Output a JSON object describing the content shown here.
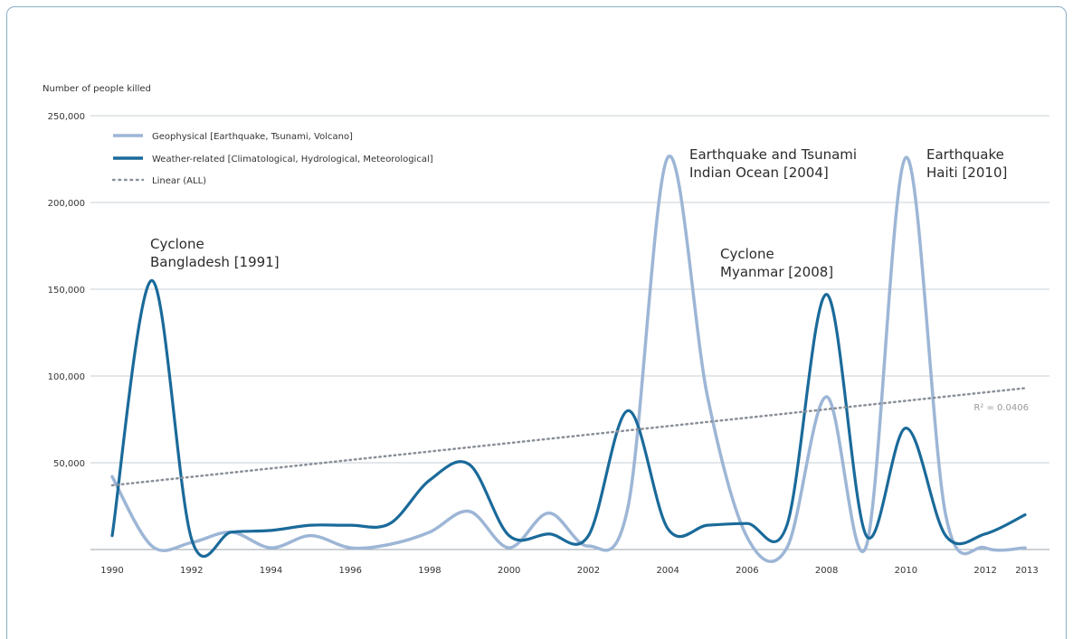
{
  "chart_data": {
    "type": "line",
    "ylabel": "Number of people killed",
    "ylim": [
      0,
      250000
    ],
    "yticks": [
      "250,000",
      "200,000",
      "150,000",
      "100,000",
      "50,000"
    ],
    "ytick_values": [
      250000,
      200000,
      150000,
      100000,
      50000
    ],
    "xticks": [
      "1990",
      "1992",
      "1994",
      "1996",
      "1998",
      "2000",
      "2002",
      "2004",
      "2006",
      "2008",
      "2010",
      "2012",
      "2013"
    ],
    "xtick_values": [
      1990,
      1992,
      1994,
      1996,
      1998,
      2000,
      2002,
      2004,
      2006,
      2008,
      2010,
      2012,
      2013
    ],
    "legend_position": "top-left",
    "series": [
      {
        "name": "Geophysical [Earthquake, Tsunami, Volcano]",
        "color": "#9db6d6",
        "style": "solid",
        "x": [
          1990,
          1991,
          1992,
          1993,
          1994,
          1995,
          1996,
          1997,
          1998,
          1999,
          2000,
          2001,
          2002,
          2003,
          2004,
          2005,
          2006,
          2007,
          2008,
          2009,
          2010,
          2011,
          2012,
          2013
        ],
        "values": [
          42000,
          2000,
          4000,
          10000,
          1000,
          8000,
          1000,
          3000,
          10000,
          22000,
          1000,
          21000,
          2000,
          25000,
          226000,
          88000,
          7000,
          1000,
          88000,
          2000,
          226000,
          20000,
          1000,
          1000
        ]
      },
      {
        "name": "Weather-related [Climatological, Hydrological, Meteorological]",
        "color": "#1a6a9a",
        "style": "solid",
        "x": [
          1990,
          1991,
          1992,
          1993,
          1994,
          1995,
          1996,
          1997,
          1998,
          1999,
          2000,
          2001,
          2002,
          2003,
          2004,
          2005,
          2006,
          2007,
          2008,
          2009,
          2010,
          2011,
          2012,
          2013
        ],
        "values": [
          8000,
          155000,
          6000,
          10000,
          11000,
          14000,
          14000,
          15000,
          40000,
          49000,
          8000,
          9000,
          8000,
          80000,
          12000,
          14000,
          15000,
          14000,
          147000,
          8000,
          70000,
          8000,
          9000,
          20000
        ]
      },
      {
        "name": "Linear (ALL)",
        "color": "#8a8f98",
        "style": "dotted",
        "x": [
          1990,
          2013
        ],
        "values": [
          37000,
          93000
        ]
      }
    ],
    "annotations": [
      {
        "text": [
          "Cyclone",
          "Bangladesh [1991]"
        ],
        "x": 1991,
        "y": 155000
      },
      {
        "text": [
          "Earthquake and Tsunami",
          "Indian Ocean [2004]"
        ],
        "x": 2004,
        "y": 226000
      },
      {
        "text": [
          "Cyclone",
          "Myanmar [2008]"
        ],
        "x": 2008,
        "y": 147000
      },
      {
        "text": [
          "Earthquake",
          "Haiti [2010]"
        ],
        "x": 2010,
        "y": 226000
      }
    ],
    "r2_label": "R² = 0.0406",
    "grid": true
  }
}
